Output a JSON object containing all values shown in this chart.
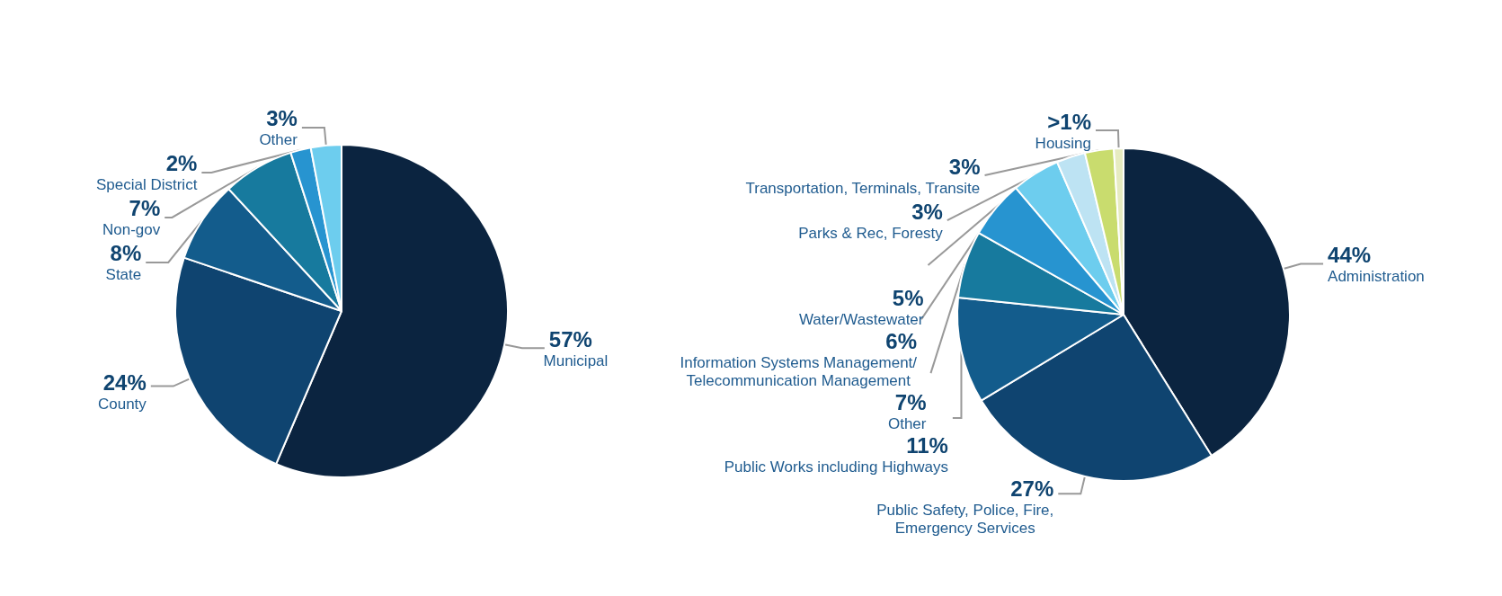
{
  "chart_data": [
    {
      "type": "pie",
      "categories": [
        "Municipal",
        "County",
        "State",
        "Non-gov",
        "Special District",
        "Other"
      ],
      "values": [
        57,
        24,
        8,
        7,
        2,
        3
      ],
      "value_labels": [
        "57%",
        "24%",
        "8%",
        "7%",
        "2%",
        "3%"
      ],
      "colors": [
        "#0b2440",
        "#0f4470",
        "#135c8c",
        "#177a9e",
        "#2794d0",
        "#6dcdee"
      ],
      "legend": false
    },
    {
      "type": "pie",
      "categories": [
        "Administration",
        "Public Safety, Police, Fire, Emergency Services",
        "Public Works including Highways",
        "Other",
        "Information Systems Management/ Telecommunication Management",
        "Water/Wastewater",
        "Parks & Rec, Foresty",
        "Transportation, Terminals, Transite",
        "Housing"
      ],
      "values": [
        44,
        27,
        11,
        7,
        6,
        5,
        3,
        3,
        1
      ],
      "value_labels": [
        "44%",
        "27%",
        "11%",
        "7%",
        "6%",
        "5%",
        "3%",
        "3%",
        ">1%"
      ],
      "colors": [
        "#0b2440",
        "#0f4470",
        "#135c8c",
        "#177a9e",
        "#2794d0",
        "#6dcdee",
        "#bde3f3",
        "#c9dc6e",
        "#e6ebc0"
      ],
      "legend": false
    }
  ]
}
